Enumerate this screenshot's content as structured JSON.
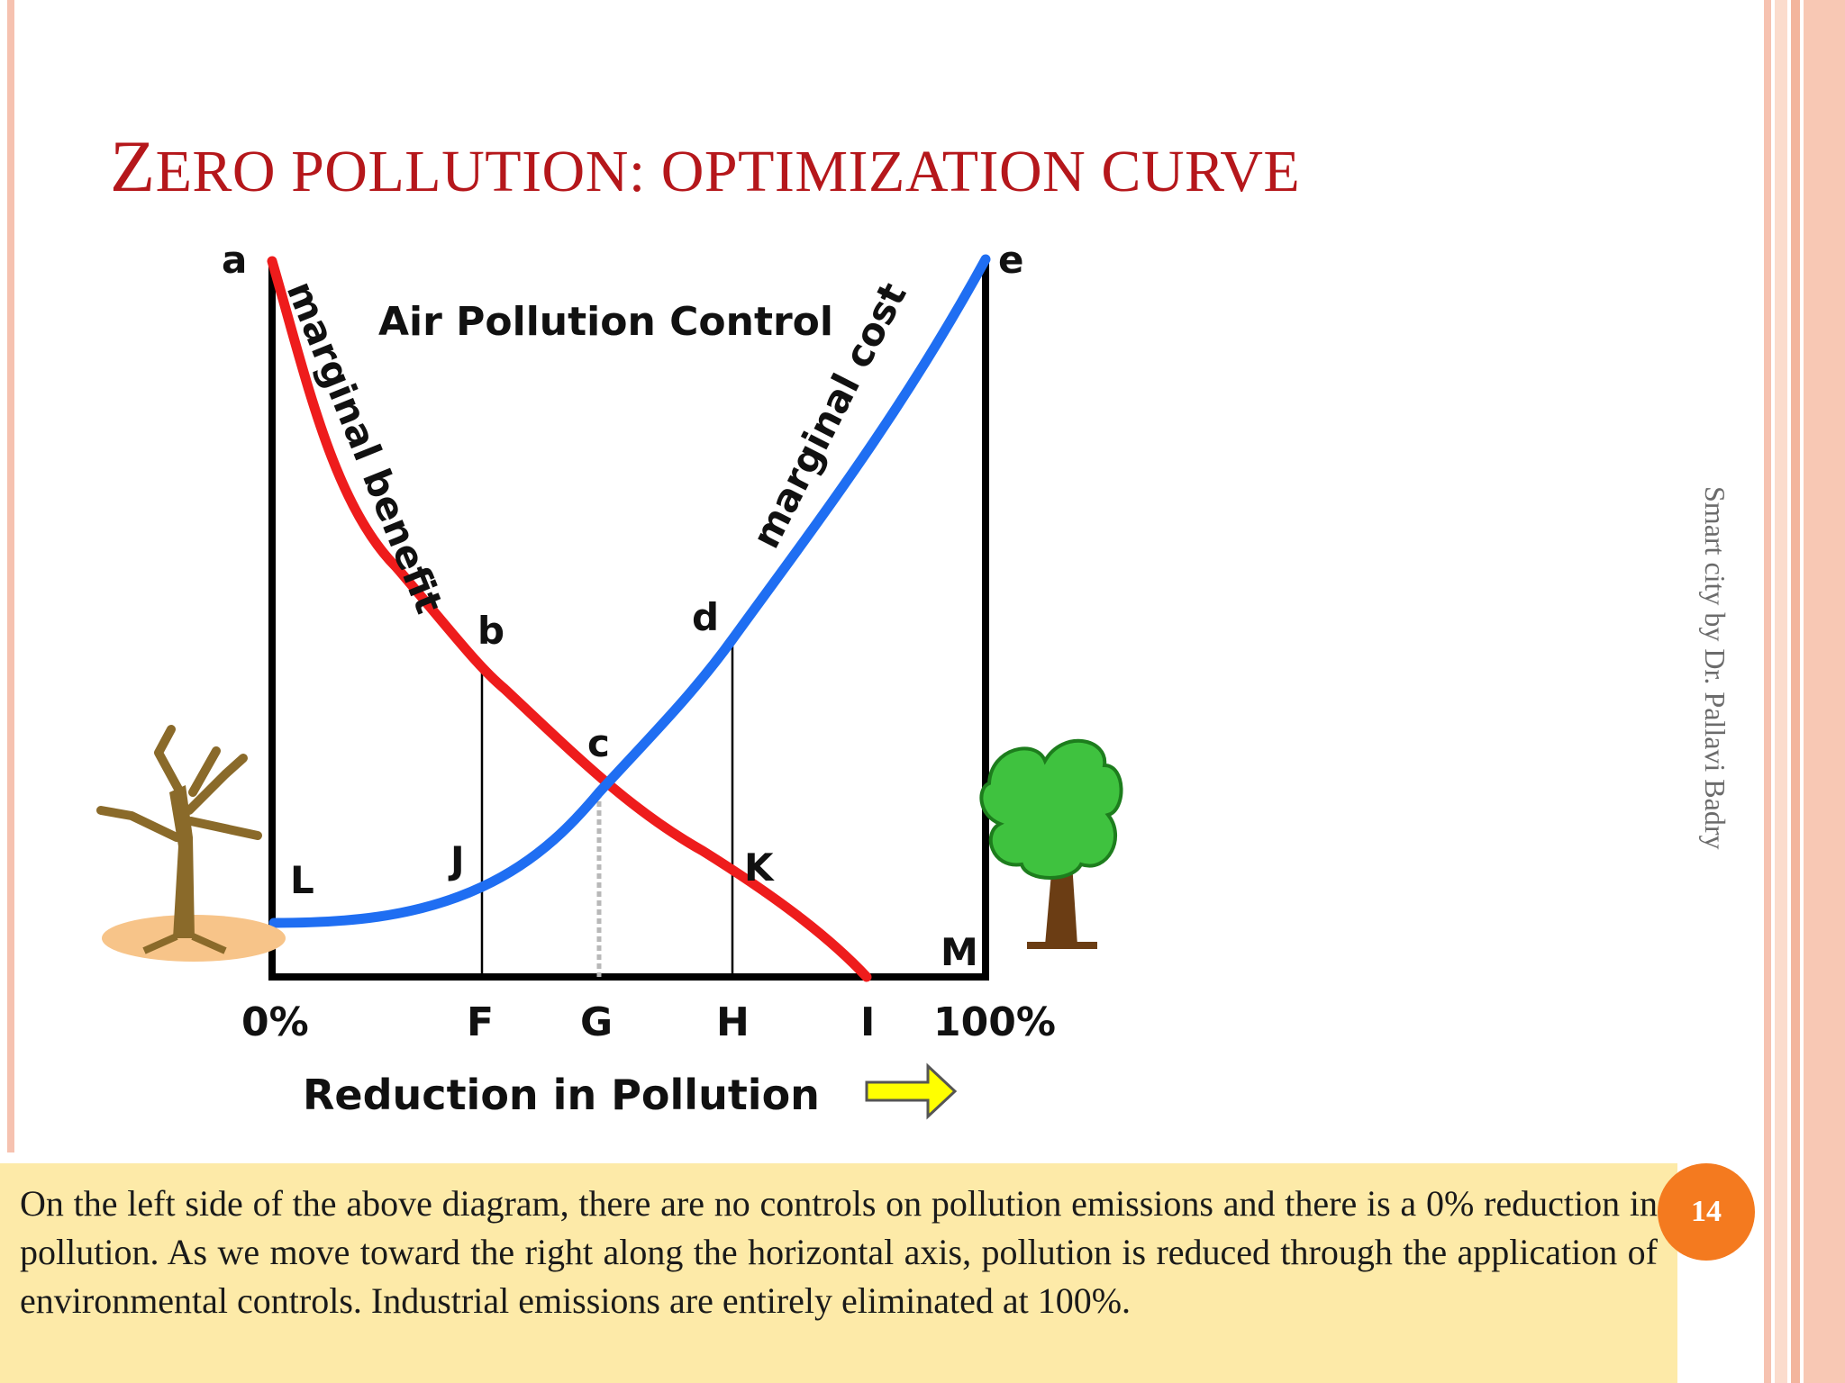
{
  "slide": {
    "title_first_letter": "Z",
    "title_rest": "ERO POLLUTION: OPTIMIZATION CURVE",
    "side_label": "Smart city by Dr. Pallavi Badry",
    "page_number": "14",
    "body_text": "On the left side of the above diagram, there are no controls on pollution emissions and there is a 0% reduction in pollution. As we move toward the right along the horizontal axis, pollution is reduced through the application of environmental controls.  Industrial emissions are entirely eliminated at 100%."
  },
  "diagram": {
    "chart_title": "Air Pollution Control",
    "xlabel": "Reduction in Pollution",
    "x_ticks": [
      "0%",
      "F",
      "G",
      "H",
      "I",
      "100%"
    ],
    "point_labels": {
      "a": "a",
      "b": "b",
      "c": "c",
      "d": "d",
      "e": "e",
      "J": "J",
      "K": "K",
      "L": "L",
      "M": "M"
    },
    "curves": [
      {
        "name": "marginal benefit",
        "color": "#ee1c1c"
      },
      {
        "name": "marginal cost",
        "color": "#1f6ef2"
      }
    ],
    "icons": [
      "dead-tree-icon",
      "healthy-tree-icon",
      "right-arrow-icon"
    ],
    "colors": {
      "accent": "#b5171b",
      "highlight_box": "#fdeaa8",
      "badge": "#f47a1f",
      "arrow": "#ffff00"
    }
  }
}
